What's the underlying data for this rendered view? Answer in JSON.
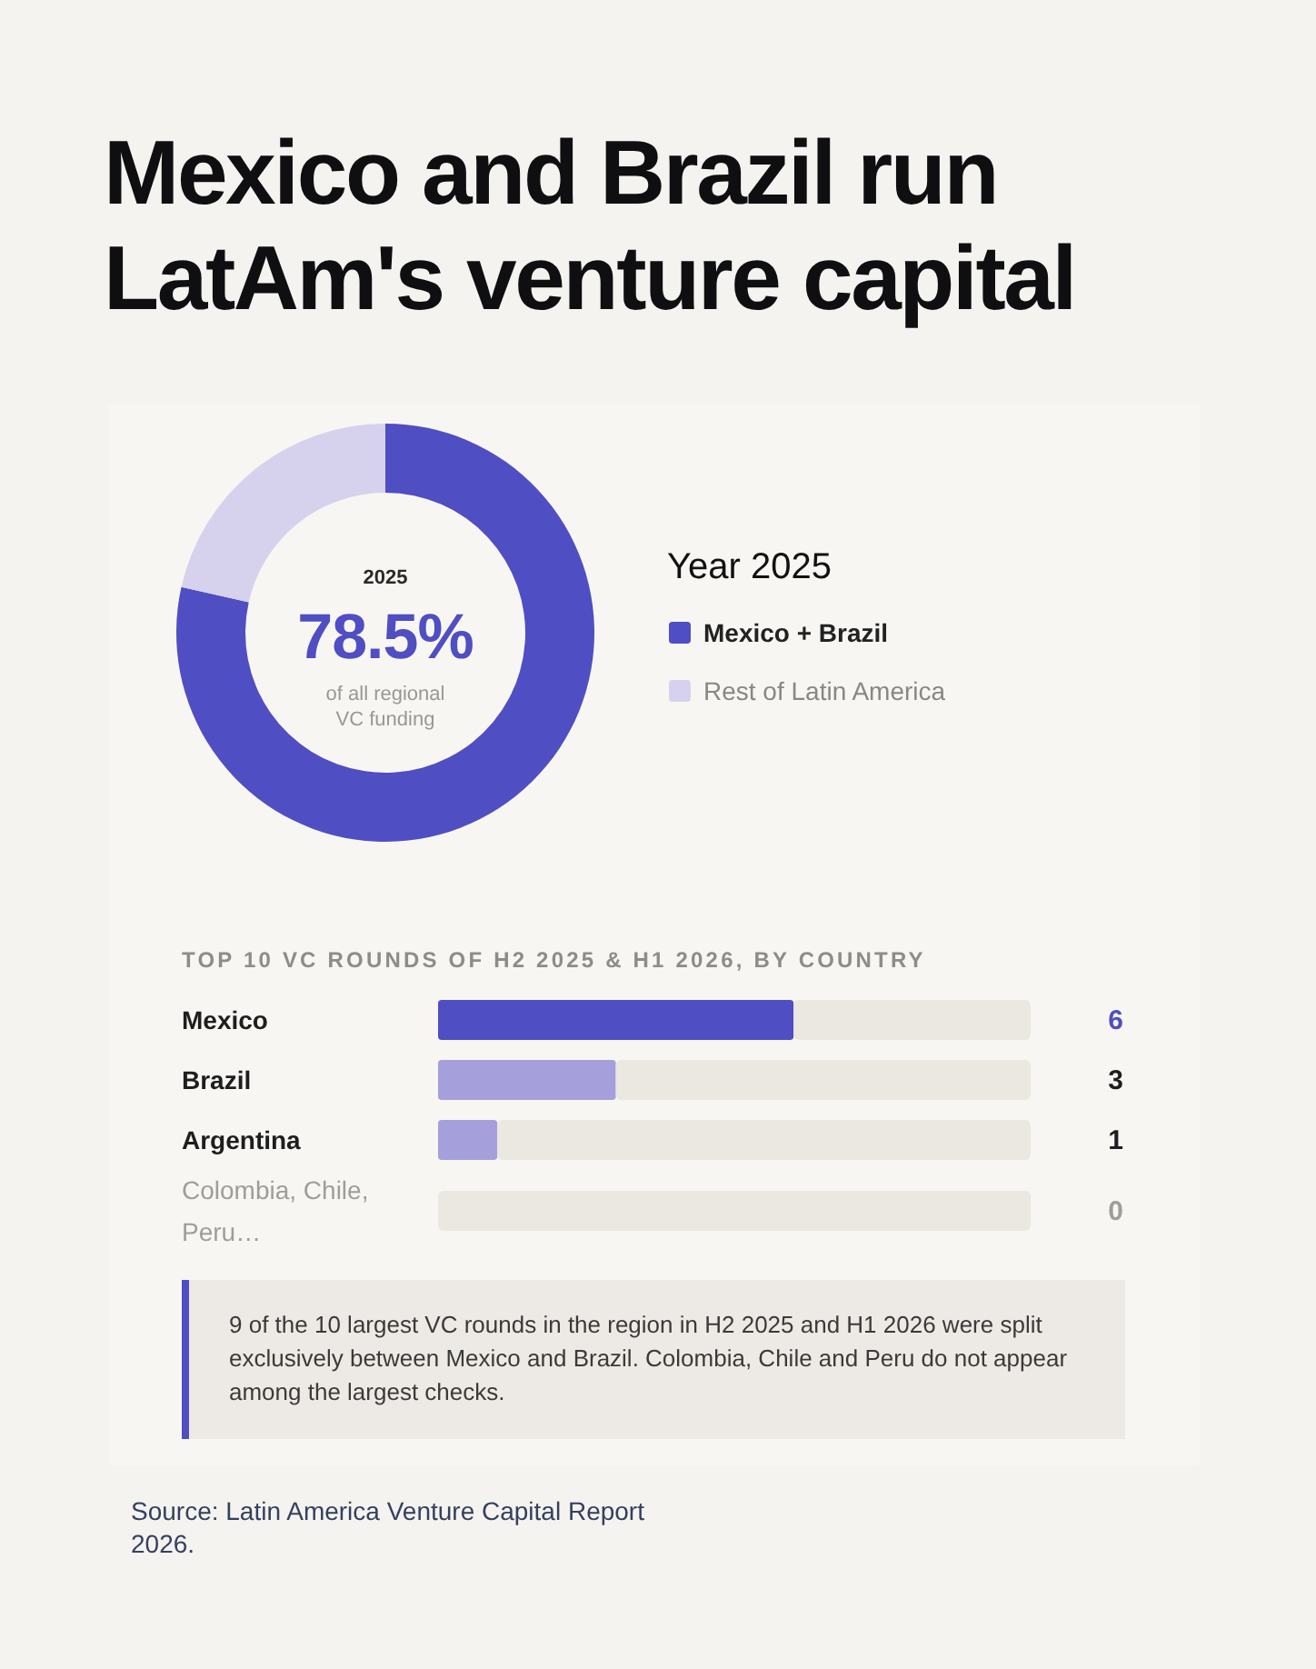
{
  "chart_data": [
    {
      "type": "donut",
      "title": "Mexico and Brazil run LatAm's venture capital",
      "legend_title": "Year 2025",
      "legend": "right",
      "categories": [
        "Mexico + Brazil",
        "Rest of Latin America"
      ],
      "values": [
        78.5,
        21.5
      ],
      "colors": [
        "#4f4ec2",
        "#d6d2ee"
      ],
      "annotations": [
        "2025",
        "78.5%",
        "of all regional VC funding"
      ]
    },
    {
      "type": "bar",
      "orientation": "horizontal",
      "stacked": true,
      "title": "TOP 10 VC ROUNDS OF H2 2025 & H1 2026, BY COUNTRY",
      "categories": [
        "Mexico",
        "Brazil",
        "Argentina",
        "Colombia, Chile, Peru…"
      ],
      "series": [
        {
          "colors": [
            "#4f4ec2",
            "#a59fdc",
            "#a59fdc",
            null
          ],
          "values": [
            6,
            3,
            1,
            0
          ],
          "value_labels": [
            "6",
            "3",
            "1",
            "0"
          ]
        },
        {
          "color": "#ebe7e1",
          "values": [
            4,
            7,
            9,
            10
          ]
        }
      ],
      "xlim": [
        0,
        10
      ],
      "tick_labels": "y",
      "annotations": [
        "9 of the 10 largest VC rounds in the region in H2 2025 and H1 2026 were split exclusively between Mexico and Brazil. Colombia, Chile and Peru do not appear among the largest checks.",
        "Source: Latin America Venture Capital Report 2026."
      ]
    }
  ]
}
